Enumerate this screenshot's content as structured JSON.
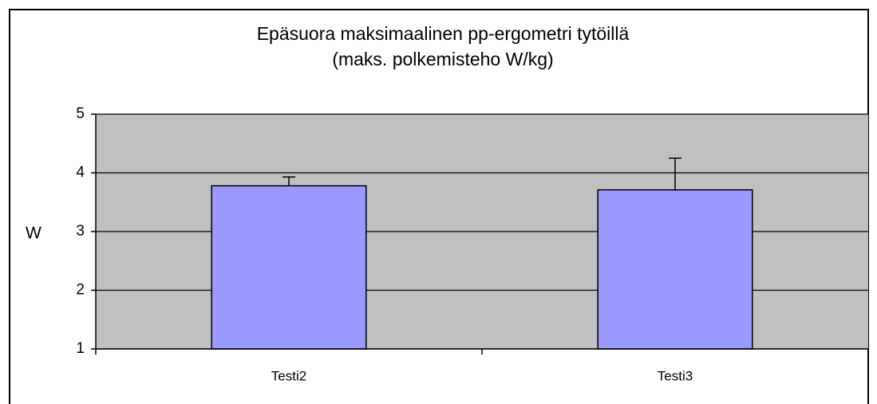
{
  "chart_data": {
    "type": "bar",
    "title": "Epäsuora maksimaalinen pp-ergometri tytöillä",
    "subtitle": "(maks. polkemisteho W/kg)",
    "y_label": "W",
    "categories": [
      "Testi2",
      "Testi3"
    ],
    "values": [
      3.78,
      3.71
    ],
    "errors": [
      0.15,
      0.54
    ],
    "color": "#9999ff",
    "plot_background": "#c0c0c0",
    "ylim": [
      1,
      5
    ],
    "yticks": [
      1,
      2,
      3,
      4,
      5
    ],
    "grid": true
  }
}
